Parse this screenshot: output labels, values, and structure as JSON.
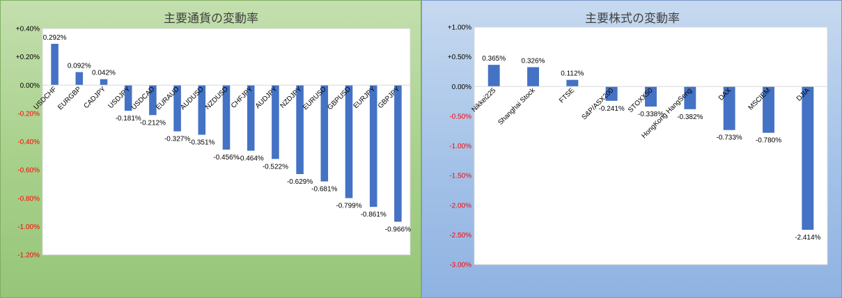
{
  "charts": [
    {
      "id": "currency",
      "chart_data": {
        "type": "bar",
        "title": "主要通貨の変動率",
        "categories": [
          "USDCHF",
          "EURGBP",
          "CADJPY",
          "USDJPY",
          "USDCAD",
          "EURAUD",
          "AUDUSD",
          "NZDUSD",
          "CHFJPY",
          "AUDJPY",
          "NZDJPY",
          "EURUSD",
          "GBPUSD",
          "EURJPY",
          "GBPJPY"
        ],
        "values": [
          0.292,
          0.092,
          0.042,
          -0.181,
          -0.212,
          -0.327,
          -0.351,
          -0.456,
          -0.464,
          -0.522,
          -0.629,
          -0.681,
          -0.799,
          -0.861,
          -0.966
        ],
        "data_labels": [
          "0.292%",
          "0.092%",
          "0.042%",
          "-0.181%",
          "-0.212%",
          "-0.327%",
          "-0.351%",
          "-0.456%",
          "-0.464%",
          "-0.522%",
          "-0.629%",
          "-0.681%",
          "-0.799%",
          "-0.861%",
          "-0.966%"
        ],
        "ylim": [
          -1.2,
          0.4
        ],
        "yticks": [
          0.4,
          0.2,
          0.0,
          -0.2,
          -0.4,
          -0.6,
          -0.8,
          -1.0,
          -1.2
        ],
        "ytick_labels": [
          "+0.40%",
          "+0.20%",
          "0.00%",
          "-0.20%",
          "-0.40%",
          "-0.60%",
          "-0.80%",
          "-1.00%",
          "-1.20%"
        ],
        "xlabel": "",
        "ylabel": "",
        "grid": false,
        "legend": "none",
        "colors": {
          "bar": "#4472c4",
          "positive_tick": "#000000",
          "negative_tick": "#ff0000",
          "title": "#404040"
        }
      }
    },
    {
      "id": "stocks",
      "chart_data": {
        "type": "bar",
        "title": "主要株式の変動率",
        "categories": [
          "Nikkei225",
          "Shanghai Stock",
          "FTSE",
          "S&P/ASX200",
          "STOXX50",
          "HongKong HangSeng",
          "DAX",
          "MSCIEM",
          "DJIA"
        ],
        "values": [
          0.365,
          0.326,
          0.112,
          -0.241,
          -0.338,
          -0.382,
          -0.733,
          -0.78,
          -2.414
        ],
        "data_labels": [
          "0.365%",
          "0.326%",
          "0.112%",
          "-0.241%",
          "-0.338%",
          "-0.382%",
          "-0.733%",
          "-0.780%",
          "-2.414%"
        ],
        "ylim": [
          -3.0,
          1.0
        ],
        "yticks": [
          1.0,
          0.5,
          0.0,
          -0.5,
          -1.0,
          -1.5,
          -2.0,
          -2.5,
          -3.0
        ],
        "ytick_labels": [
          "+1.00%",
          "+0.50%",
          "0.00%",
          "-0.50%",
          "-1.00%",
          "-1.50%",
          "-2.00%",
          "-2.50%",
          "-3.00%"
        ],
        "xlabel": "",
        "ylabel": "",
        "grid": false,
        "legend": "none",
        "colors": {
          "bar": "#4472c4",
          "positive_tick": "#000000",
          "negative_tick": "#ff0000",
          "title": "#404040"
        }
      }
    }
  ]
}
